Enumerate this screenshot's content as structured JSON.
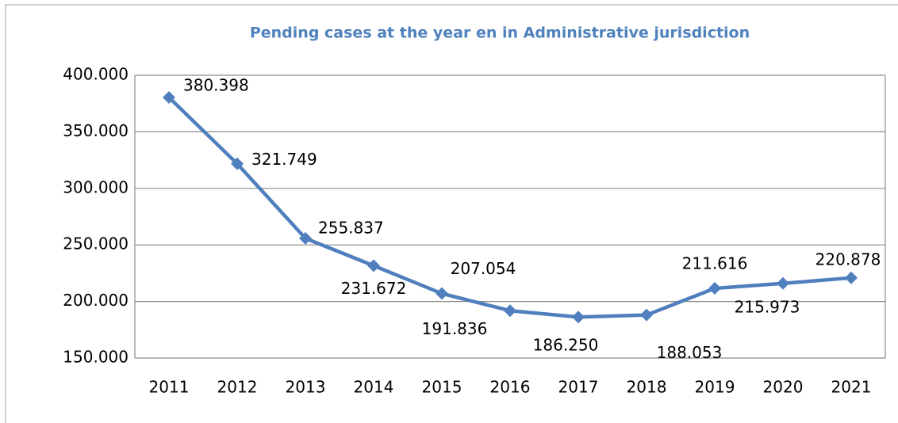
{
  "chart_data": {
    "type": "line",
    "title": "Pending cases at the year en in Administrative jurisdiction",
    "categories": [
      "2011",
      "2012",
      "2013",
      "2014",
      "2015",
      "2016",
      "2017",
      "2018",
      "2019",
      "2020",
      "2021"
    ],
    "series": [
      {
        "name": "Pending cases",
        "color": "#4f7fbd",
        "values": [
          380398,
          321749,
          255837,
          231672,
          207054,
          191836,
          186250,
          188053,
          211616,
          215973,
          220878
        ],
        "value_labels": [
          "380.398",
          "321.749",
          "255.837",
          "231.672",
          "207.054",
          "191.836",
          "186.250",
          "188.053",
          "211.616",
          "215.973",
          "220.878"
        ]
      }
    ],
    "ylim": [
      150000,
      400000
    ],
    "yticks": [
      {
        "value": 150000,
        "label": "150.000"
      },
      {
        "value": 200000,
        "label": "200.000"
      },
      {
        "value": 250000,
        "label": "250.000"
      },
      {
        "value": 300000,
        "label": "300.000"
      },
      {
        "value": 350000,
        "label": "350.000"
      },
      {
        "value": 400000,
        "label": "400.000"
      }
    ],
    "grid": true
  }
}
